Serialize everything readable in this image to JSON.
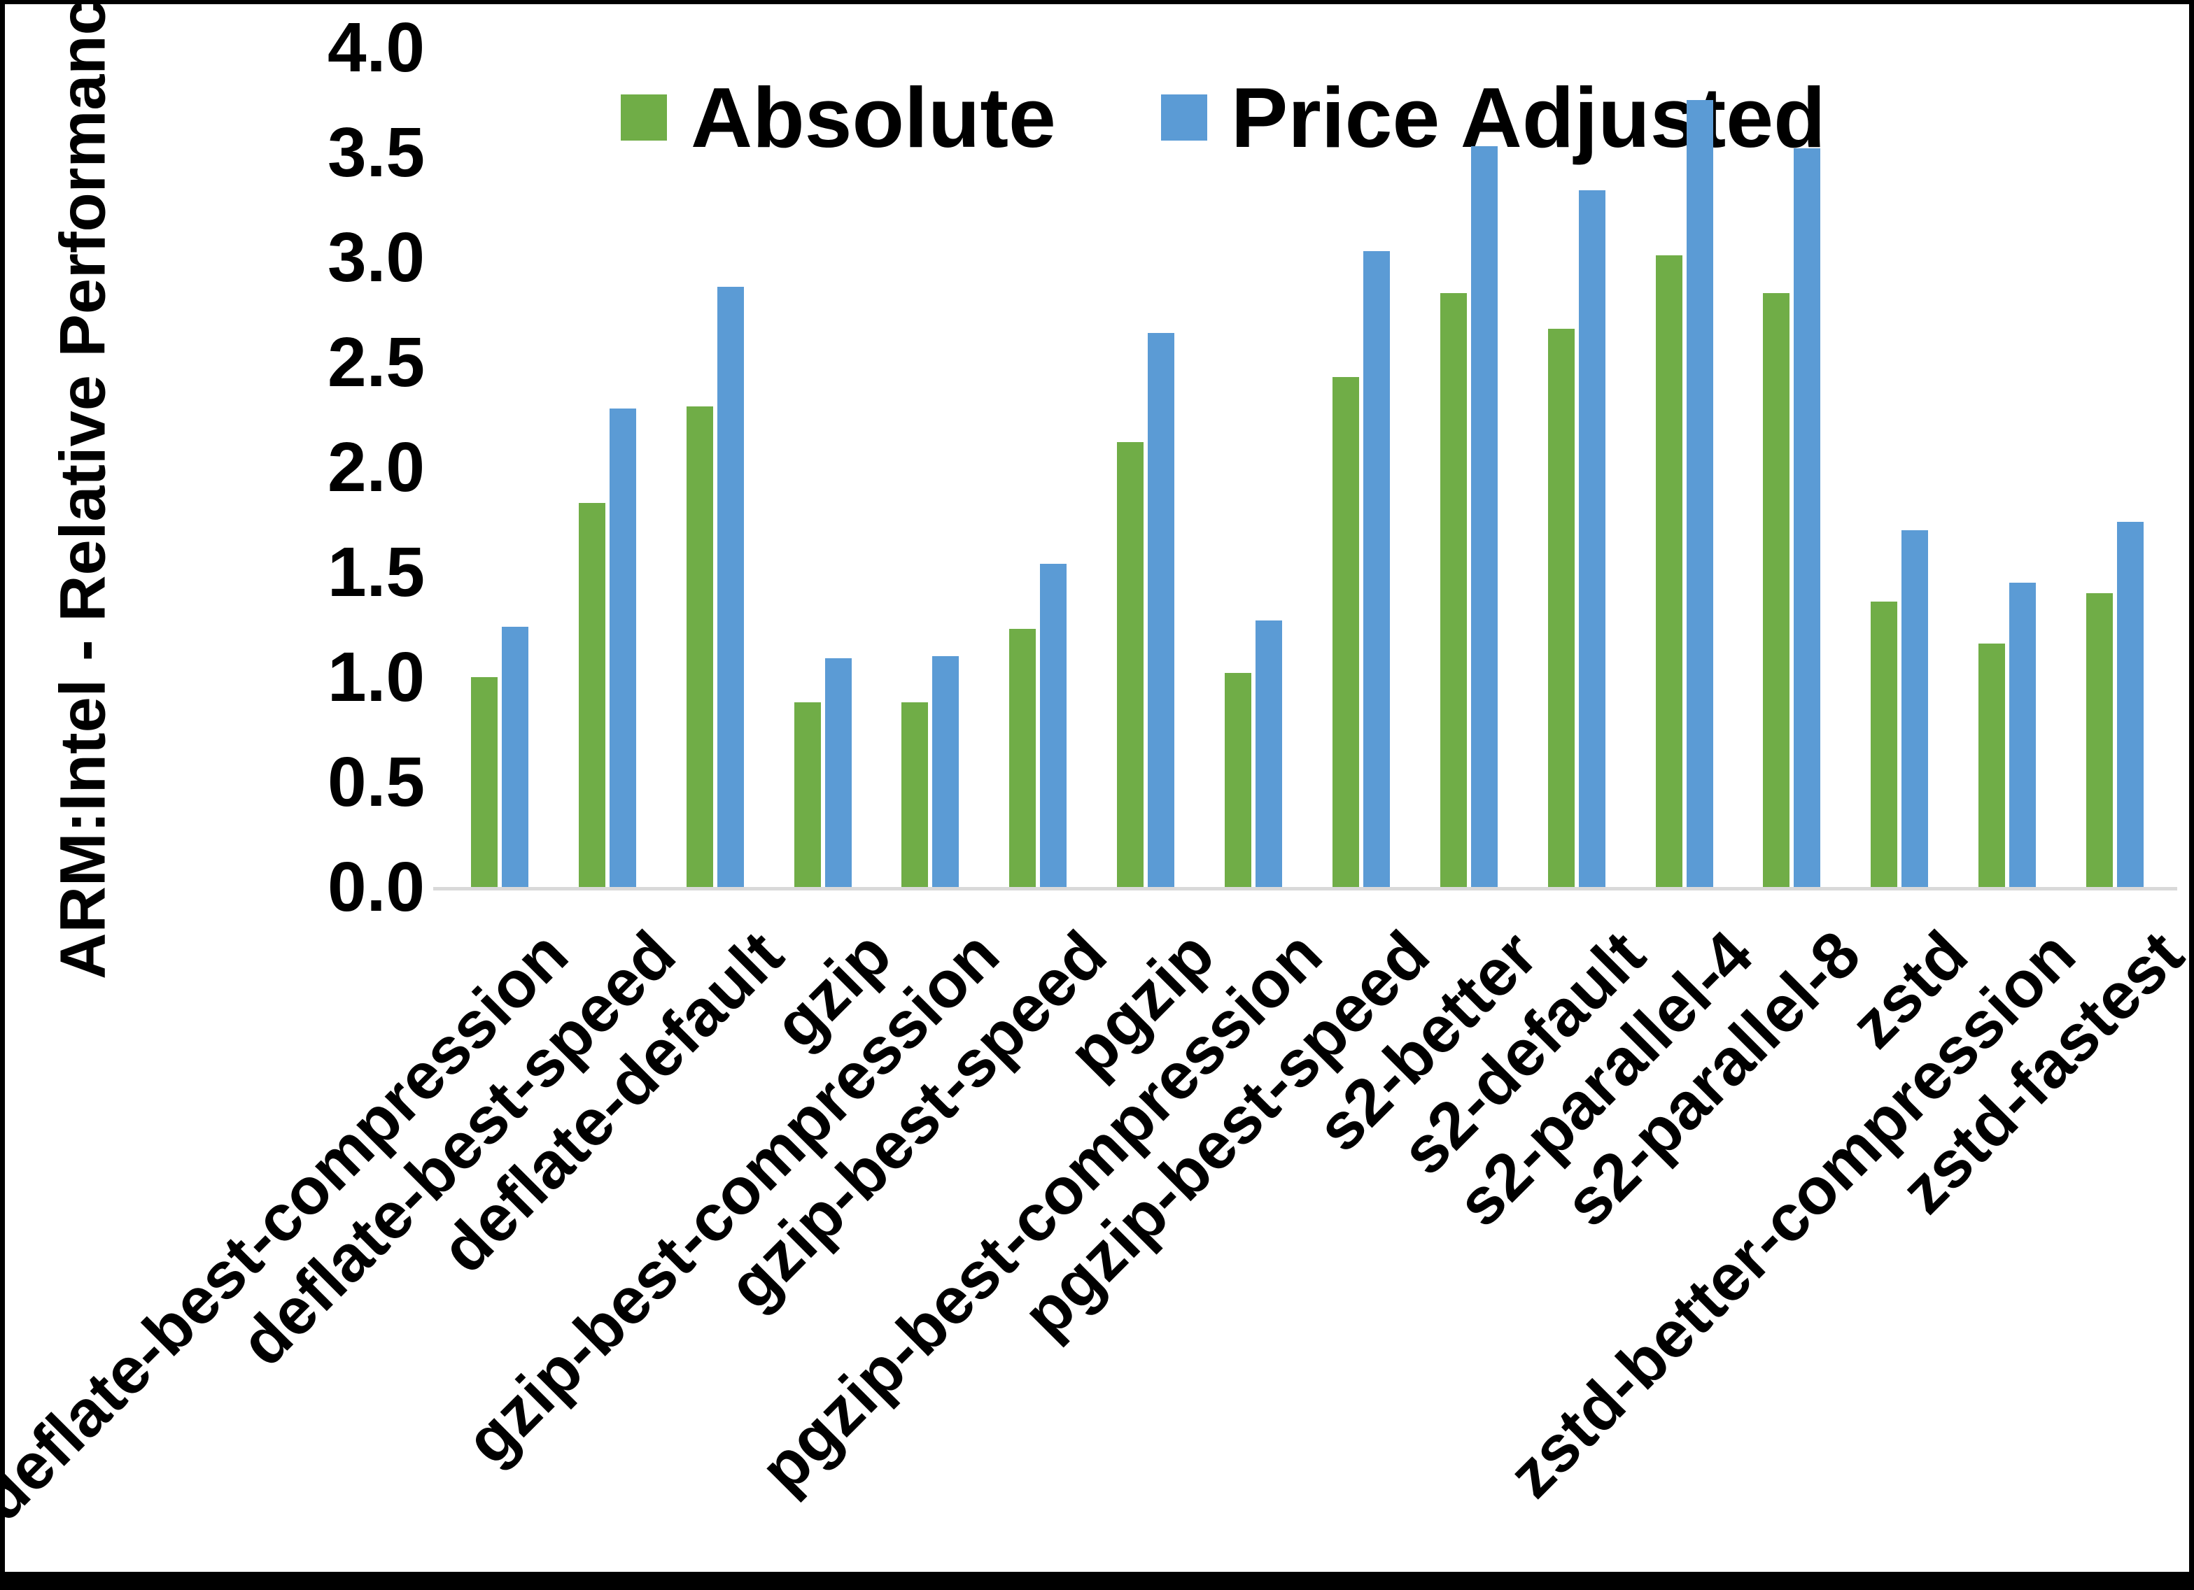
{
  "chart_data": {
    "type": "bar",
    "title": "",
    "xlabel": "",
    "ylabel": "ARM:Intel - Relative Performance",
    "ylim": [
      0.0,
      4.0
    ],
    "ytick_step": 0.5,
    "grid": false,
    "legend_position": "top-center",
    "background_color": "#ffffff",
    "axis_line_color": "#d9d9d9",
    "categories": [
      "deflate-best-compression",
      "deflate-best-speed",
      "deflate-default",
      "gzip",
      "gzip-best-compression",
      "gzip-best-speed",
      "pgzip",
      "pgzip-best-compression",
      "pgzip-best-speed",
      "s2-better",
      "s2-default",
      "s2-parallel-4",
      "s2-parallel-8",
      "zstd",
      "zstd-better-compression",
      "zstd-fastest"
    ],
    "series": [
      {
        "name": "Absolute",
        "color": "#70AD47",
        "values": [
          1.0,
          1.83,
          2.29,
          0.88,
          0.88,
          1.23,
          2.12,
          1.02,
          2.43,
          2.83,
          2.66,
          3.01,
          2.83,
          1.36,
          1.16,
          1.4
        ]
      },
      {
        "name": "Price Adjusted",
        "color": "#5B9BD5",
        "values": [
          1.24,
          2.28,
          2.86,
          1.09,
          1.1,
          1.54,
          2.64,
          1.27,
          3.03,
          3.53,
          3.32,
          3.75,
          3.52,
          1.7,
          1.45,
          1.74
        ]
      }
    ]
  }
}
